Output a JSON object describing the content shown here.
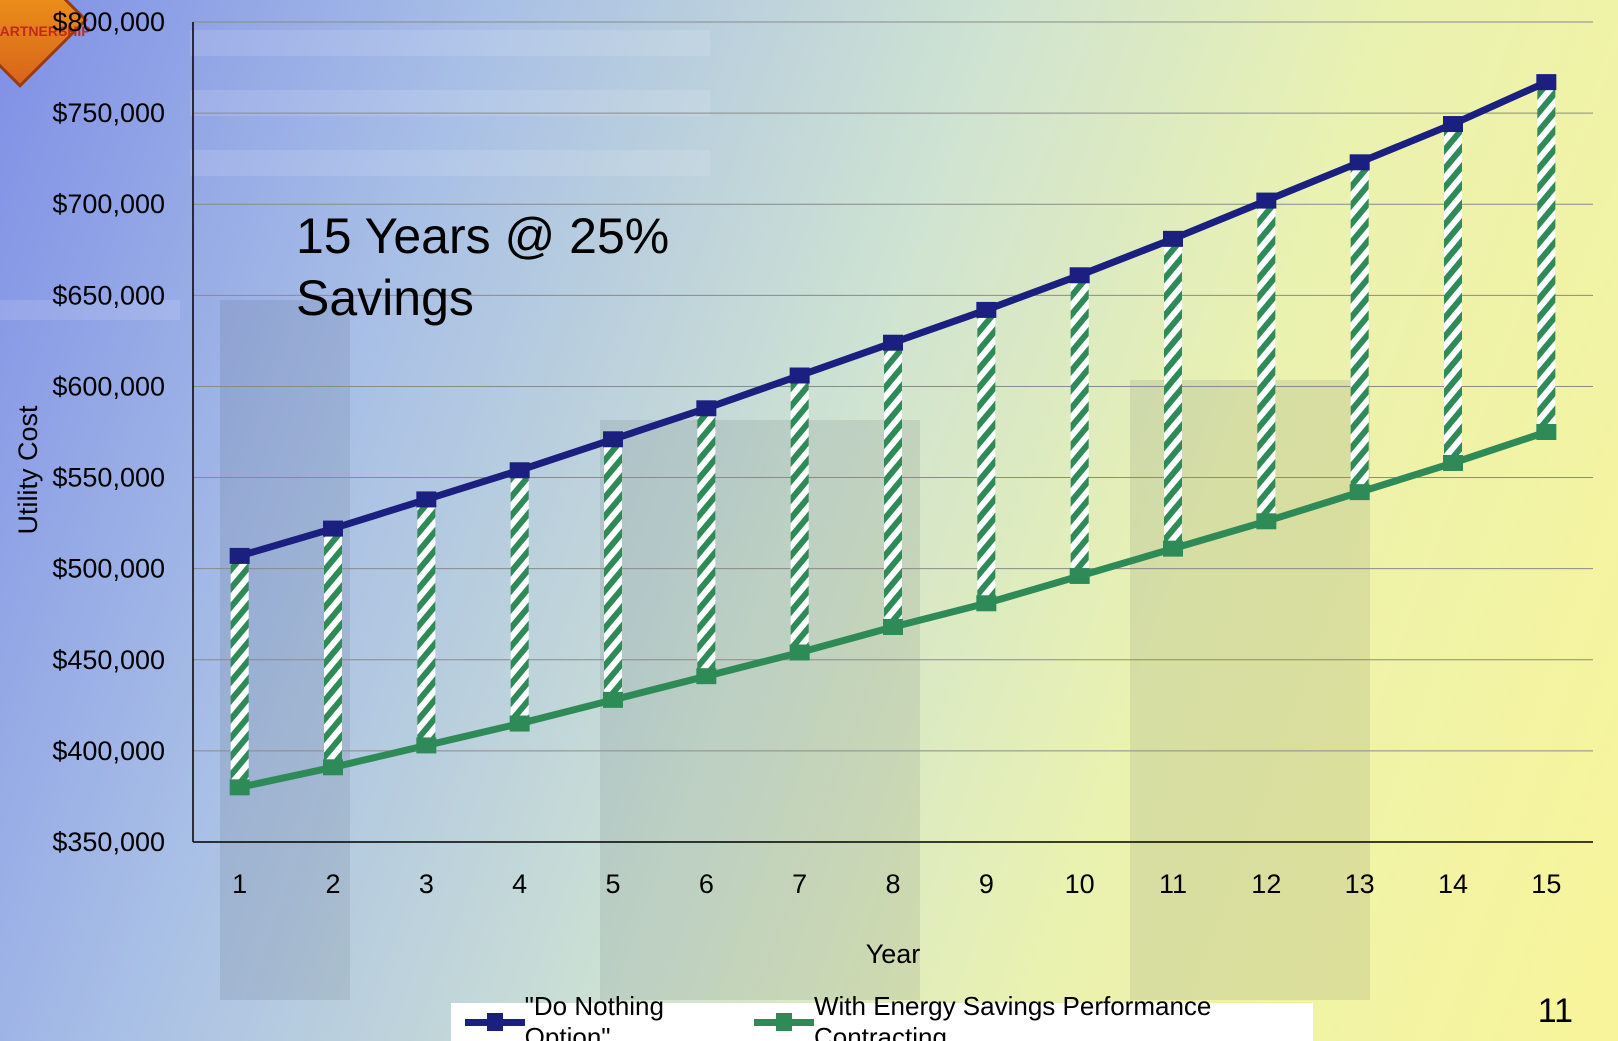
{
  "chart_data": {
    "type": "line",
    "annotation": "15 Years @ 25%\nSavings",
    "xlabel": "Year",
    "ylabel": "Utility Cost",
    "categories": [
      "1",
      "2",
      "3",
      "4",
      "5",
      "6",
      "7",
      "8",
      "9",
      "10",
      "11",
      "12",
      "13",
      "14",
      "15"
    ],
    "ylim": [
      350000,
      800000
    ],
    "yticks": [
      "$350,000",
      "$400,000",
      "$450,000",
      "$500,000",
      "$550,000",
      "$600,000",
      "$650,000",
      "$700,000",
      "$750,000",
      "$800,000"
    ],
    "grid": true,
    "legend_position": "bottom",
    "series": [
      {
        "name": "\"Do Nothing Option\"",
        "color": "#1a1f80",
        "values": [
          507000,
          522000,
          538000,
          554000,
          571000,
          588000,
          606000,
          624000,
          642000,
          661000,
          681000,
          702000,
          723000,
          744000,
          767000
        ]
      },
      {
        "name": "With Energy Savings Performance Contracting",
        "color": "#2e8b57",
        "values": [
          380000,
          391000,
          403000,
          415000,
          428000,
          441000,
          454000,
          468000,
          481000,
          496000,
          511000,
          526000,
          542000,
          558000,
          575000
        ]
      }
    ],
    "savings_bars": {
      "pattern": "green-white-diagonal-stripes",
      "from_series": 1,
      "to_series": 0
    }
  },
  "page_number": "11",
  "logo": {
    "text": "PARTNERSHIP",
    "icon": "orange-diamond-logo"
  }
}
